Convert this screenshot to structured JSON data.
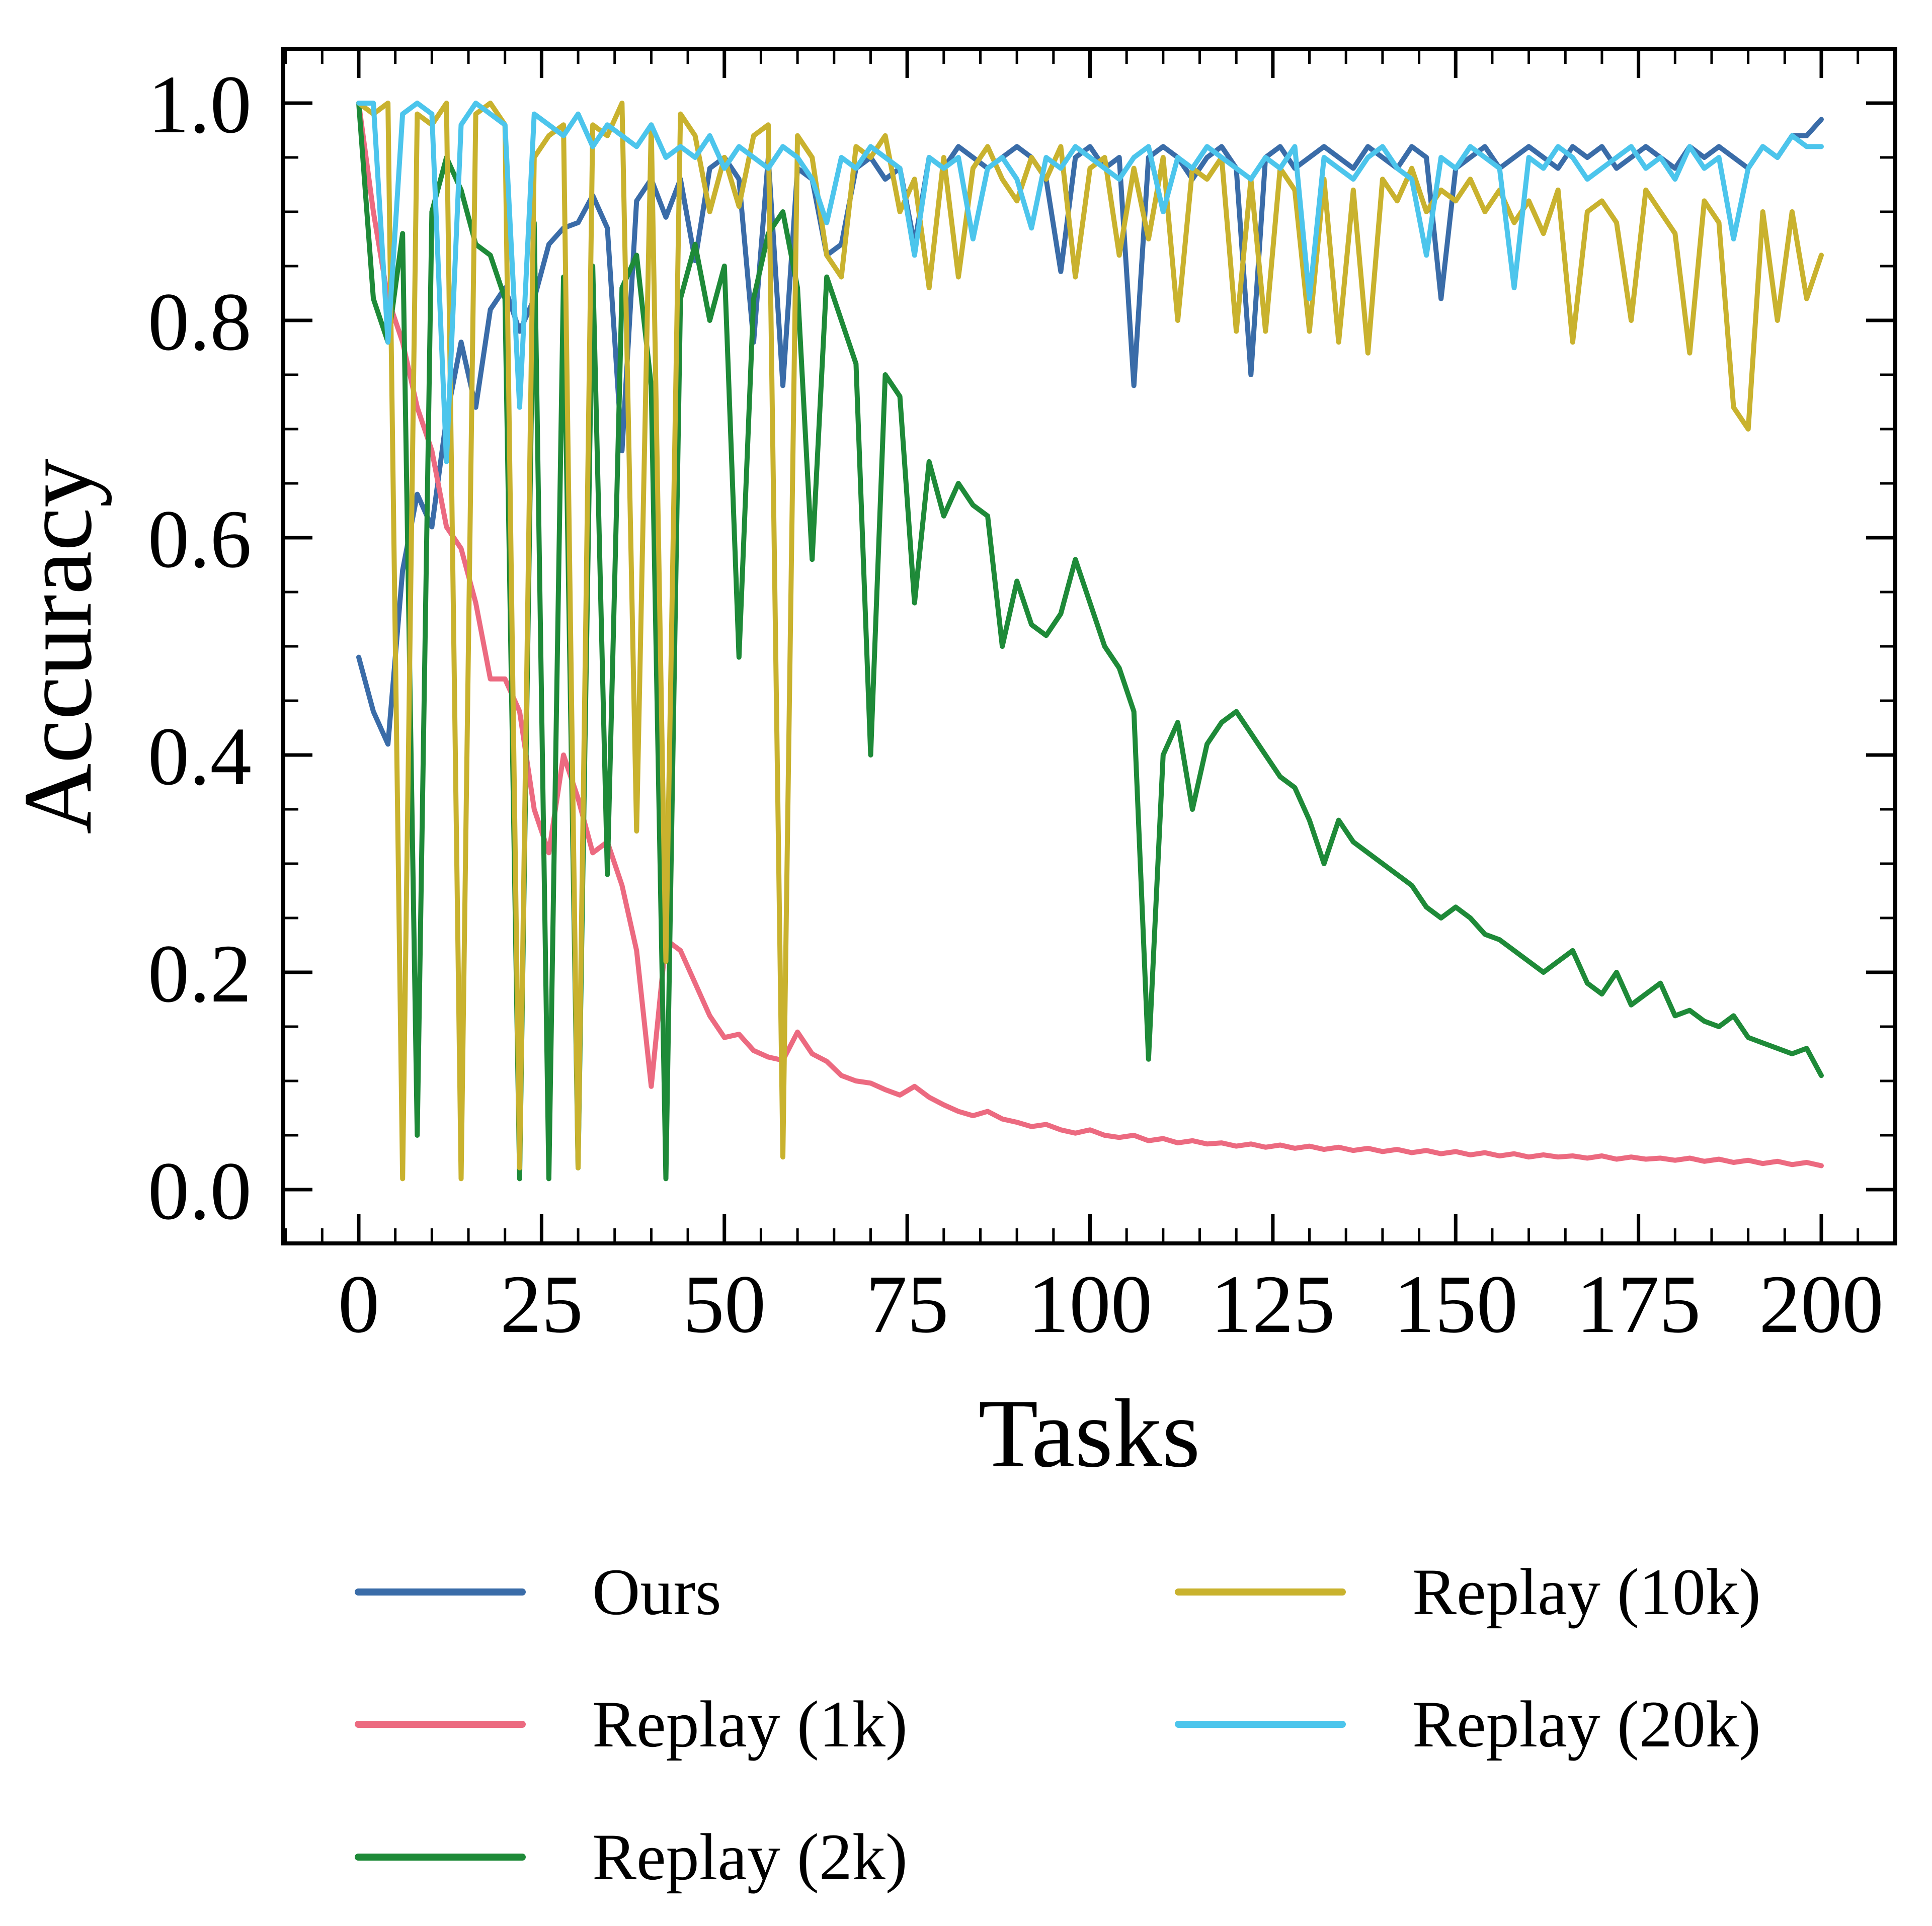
{
  "figure": {
    "background": "#ffffff"
  },
  "chart_data": {
    "type": "line",
    "title": "",
    "xlabel": "Tasks",
    "ylabel": "Accuracy",
    "xlim": [
      -10.3,
      210.3
    ],
    "ylim": [
      -0.05,
      1.05
    ],
    "grid": false,
    "legend_position": "below chart, two columns",
    "axis_color": "#000000",
    "x": {
      "start": 0,
      "end": 200,
      "step": 2
    },
    "x_axis": {
      "major_ticks": [
        0,
        25,
        50,
        75,
        100,
        125,
        150,
        175,
        200
      ],
      "tick_labels": [
        "0",
        "25",
        "50",
        "75",
        "100",
        "125",
        "150",
        "175",
        "200"
      ],
      "minor_tick_step": 5
    },
    "y_axis": {
      "major_ticks": [
        0.0,
        0.2,
        0.4,
        0.6,
        0.8,
        1.0
      ],
      "tick_labels": [
        "0.0",
        "0.2",
        "0.4",
        "0.6",
        "0.8",
        "1.0"
      ],
      "minor_tick_step": 0.05
    },
    "series": [
      {
        "name": "Ours",
        "color": "#3a6ca8",
        "values": [
          0.49,
          0.44,
          0.41,
          0.57,
          0.64,
          0.61,
          0.71,
          0.78,
          0.72,
          0.81,
          0.83,
          0.79,
          0.82,
          0.87,
          0.885,
          0.89,
          0.915,
          0.885,
          0.68,
          0.91,
          0.93,
          0.895,
          0.93,
          0.855,
          0.94,
          0.95,
          0.93,
          0.78,
          0.95,
          0.74,
          0.94,
          0.93,
          0.86,
          0.87,
          0.94,
          0.95,
          0.93,
          0.94,
          0.87,
          0.95,
          0.94,
          0.96,
          0.95,
          0.94,
          0.95,
          0.96,
          0.95,
          0.93,
          0.845,
          0.95,
          0.96,
          0.94,
          0.95,
          0.74,
          0.95,
          0.96,
          0.95,
          0.93,
          0.95,
          0.96,
          0.94,
          0.75,
          0.95,
          0.96,
          0.94,
          0.95,
          0.96,
          0.95,
          0.94,
          0.96,
          0.95,
          0.94,
          0.96,
          0.95,
          0.82,
          0.94,
          0.95,
          0.96,
          0.94,
          0.95,
          0.96,
          0.95,
          0.94,
          0.96,
          0.95,
          0.96,
          0.94,
          0.95,
          0.96,
          0.95,
          0.94,
          0.96,
          0.95,
          0.96,
          0.95,
          0.94,
          0.96,
          0.95,
          0.97,
          0.97,
          0.985
        ]
      },
      {
        "name": "Replay (1k)",
        "color": "#ec6a80",
        "values": [
          1.0,
          0.9,
          0.82,
          0.78,
          0.72,
          0.68,
          0.61,
          0.59,
          0.54,
          0.47,
          0.47,
          0.44,
          0.35,
          0.31,
          0.4,
          0.36,
          0.31,
          0.32,
          0.28,
          0.22,
          0.095,
          0.23,
          0.22,
          0.19,
          0.16,
          0.14,
          0.143,
          0.128,
          0.122,
          0.119,
          0.145,
          0.125,
          0.118,
          0.105,
          0.1,
          0.098,
          0.092,
          0.087,
          0.095,
          0.085,
          0.078,
          0.072,
          0.068,
          0.072,
          0.065,
          0.062,
          0.058,
          0.06,
          0.055,
          0.052,
          0.055,
          0.05,
          0.048,
          0.05,
          0.045,
          0.047,
          0.043,
          0.045,
          0.042,
          0.043,
          0.04,
          0.042,
          0.039,
          0.041,
          0.038,
          0.04,
          0.037,
          0.039,
          0.036,
          0.038,
          0.035,
          0.037,
          0.034,
          0.036,
          0.033,
          0.035,
          0.032,
          0.034,
          0.031,
          0.033,
          0.03,
          0.032,
          0.03,
          0.031,
          0.029,
          0.031,
          0.028,
          0.03,
          0.028,
          0.029,
          0.027,
          0.029,
          0.026,
          0.028,
          0.025,
          0.027,
          0.024,
          0.026,
          0.023,
          0.025,
          0.022
        ]
      },
      {
        "name": "Replay (2k)",
        "color": "#1e8a38",
        "values": [
          1.0,
          0.82,
          0.78,
          0.88,
          0.05,
          0.9,
          0.95,
          0.92,
          0.87,
          0.86,
          0.82,
          0.01,
          0.89,
          0.01,
          0.84,
          0.02,
          0.85,
          0.29,
          0.83,
          0.86,
          0.74,
          0.01,
          0.82,
          0.87,
          0.8,
          0.85,
          0.49,
          0.82,
          0.88,
          0.9,
          0.83,
          0.58,
          0.84,
          0.8,
          0.76,
          0.4,
          0.75,
          0.73,
          0.54,
          0.67,
          0.62,
          0.65,
          0.63,
          0.62,
          0.5,
          0.56,
          0.52,
          0.51,
          0.53,
          0.58,
          0.54,
          0.5,
          0.48,
          0.44,
          0.12,
          0.4,
          0.43,
          0.35,
          0.41,
          0.43,
          0.44,
          0.42,
          0.4,
          0.38,
          0.37,
          0.34,
          0.3,
          0.34,
          0.32,
          0.31,
          0.3,
          0.29,
          0.28,
          0.26,
          0.25,
          0.26,
          0.25,
          0.235,
          0.23,
          0.22,
          0.21,
          0.2,
          0.21,
          0.22,
          0.19,
          0.18,
          0.2,
          0.17,
          0.18,
          0.19,
          0.16,
          0.165,
          0.155,
          0.15,
          0.16,
          0.14,
          0.135,
          0.13,
          0.125,
          0.13,
          0.105
        ]
      },
      {
        "name": "Replay (10k)",
        "color": "#c9b22e",
        "values": [
          1.0,
          0.99,
          1.0,
          0.01,
          0.99,
          0.98,
          1.0,
          0.01,
          0.99,
          1.0,
          0.98,
          0.02,
          0.95,
          0.97,
          0.98,
          0.02,
          0.98,
          0.97,
          1.0,
          0.33,
          0.98,
          0.21,
          0.99,
          0.97,
          0.9,
          0.95,
          0.905,
          0.97,
          0.98,
          0.03,
          0.97,
          0.95,
          0.86,
          0.84,
          0.96,
          0.95,
          0.97,
          0.9,
          0.93,
          0.83,
          0.95,
          0.84,
          0.94,
          0.96,
          0.93,
          0.91,
          0.95,
          0.93,
          0.96,
          0.84,
          0.94,
          0.95,
          0.86,
          0.94,
          0.875,
          0.95,
          0.8,
          0.94,
          0.93,
          0.95,
          0.79,
          0.93,
          0.79,
          0.94,
          0.92,
          0.79,
          0.93,
          0.78,
          0.92,
          0.77,
          0.93,
          0.91,
          0.94,
          0.9,
          0.92,
          0.91,
          0.93,
          0.9,
          0.92,
          0.89,
          0.91,
          0.88,
          0.92,
          0.78,
          0.9,
          0.91,
          0.89,
          0.8,
          0.92,
          0.9,
          0.88,
          0.77,
          0.91,
          0.89,
          0.72,
          0.7,
          0.9,
          0.8,
          0.9,
          0.82,
          0.86
        ]
      },
      {
        "name": "Replay (20k)",
        "color": "#4cc5ec",
        "values": [
          1.0,
          1.0,
          0.78,
          0.99,
          1.0,
          0.99,
          0.67,
          0.98,
          1.0,
          0.99,
          0.98,
          0.72,
          0.99,
          0.98,
          0.97,
          0.99,
          0.96,
          0.98,
          0.97,
          0.96,
          0.98,
          0.95,
          0.96,
          0.95,
          0.97,
          0.94,
          0.96,
          0.95,
          0.94,
          0.96,
          0.95,
          0.93,
          0.89,
          0.95,
          0.94,
          0.96,
          0.95,
          0.94,
          0.86,
          0.95,
          0.94,
          0.95,
          0.875,
          0.94,
          0.95,
          0.93,
          0.885,
          0.95,
          0.94,
          0.96,
          0.95,
          0.94,
          0.93,
          0.95,
          0.96,
          0.9,
          0.95,
          0.94,
          0.96,
          0.95,
          0.94,
          0.93,
          0.95,
          0.94,
          0.96,
          0.82,
          0.95,
          0.94,
          0.93,
          0.95,
          0.96,
          0.94,
          0.93,
          0.86,
          0.95,
          0.94,
          0.96,
          0.95,
          0.94,
          0.83,
          0.95,
          0.94,
          0.96,
          0.95,
          0.93,
          0.94,
          0.95,
          0.96,
          0.94,
          0.95,
          0.93,
          0.96,
          0.94,
          0.95,
          0.875,
          0.94,
          0.96,
          0.95,
          0.97,
          0.96,
          0.96
        ]
      }
    ]
  }
}
